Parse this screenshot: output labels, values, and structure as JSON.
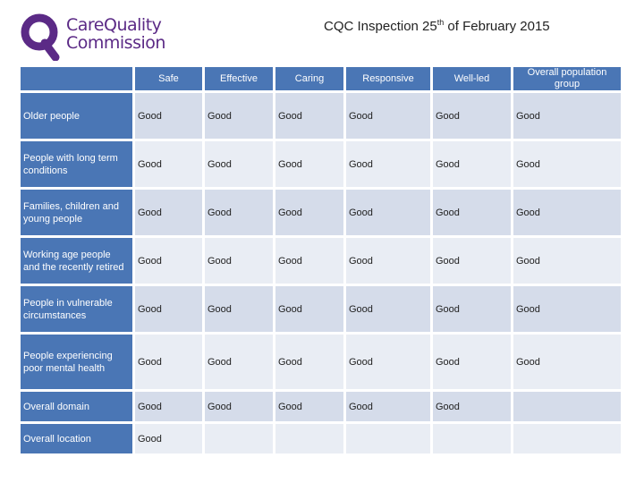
{
  "logo": {
    "line1": "CareQuality",
    "line2": "Commission",
    "brand_color": "#5b2a86"
  },
  "title": {
    "prefix": "CQC Inspection 25",
    "sup": "th",
    "suffix": " of February 2015"
  },
  "table": {
    "columns": [
      "Safe",
      "Effective",
      "Caring",
      "Responsive",
      "Well-led",
      "Overall population group"
    ],
    "rows": [
      {
        "label": "Older people",
        "cells": [
          "Good",
          "Good",
          "Good",
          "Good",
          "Good",
          "Good"
        ]
      },
      {
        "label": "People with long term conditions",
        "cells": [
          "Good",
          "Good",
          "Good",
          "Good",
          "Good",
          "Good"
        ]
      },
      {
        "label": "Families, children and young people",
        "cells": [
          "Good",
          "Good",
          "Good",
          "Good",
          "Good",
          "Good"
        ]
      },
      {
        "label": "Working age people and the recently retired",
        "cells": [
          "Good",
          "Good",
          "Good",
          "Good",
          "Good",
          "Good"
        ]
      },
      {
        "label": "People in vulnerable circumstances",
        "cells": [
          "Good",
          "Good",
          "Good",
          "Good",
          "Good",
          "Good"
        ]
      },
      {
        "label": "People experiencing poor mental health",
        "cells": [
          "Good",
          "Good",
          "Good",
          "Good",
          "Good",
          "Good"
        ]
      },
      {
        "label": "Overall domain",
        "cells": [
          "Good",
          "Good",
          "Good",
          "Good",
          "Good",
          ""
        ]
      },
      {
        "label": "Overall location",
        "cells": [
          "Good",
          "",
          "",
          "",
          "",
          ""
        ]
      }
    ]
  },
  "colors": {
    "header_bg": "#4a76b5",
    "cell_bg": "#d5dcea",
    "cell_alt_bg": "#e9edf4"
  }
}
